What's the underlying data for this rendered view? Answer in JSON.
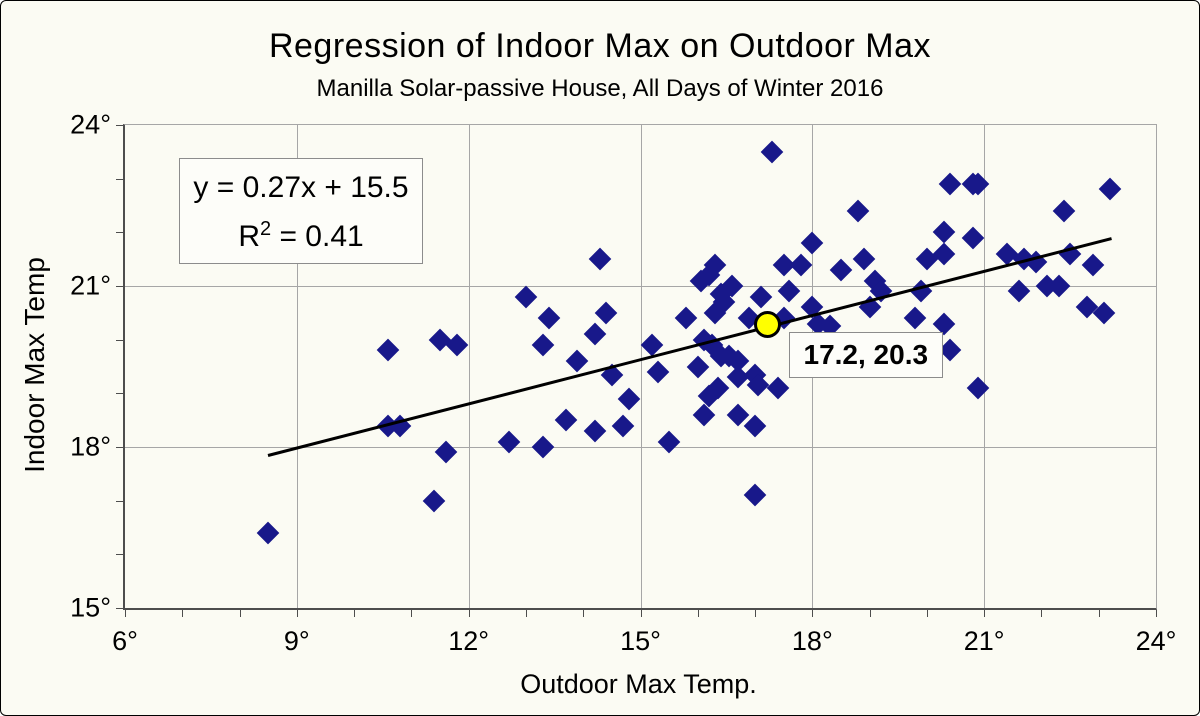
{
  "title": "Regression of Indoor Max on Outdoor Max",
  "subtitle": "Manilla Solar-passive House, All Days of Winter 2016",
  "equation": {
    "line1": "y = 0.27x + 15.5",
    "r2_base": "R",
    "r2_sup": "2",
    "r2_rest": " = 0.41"
  },
  "colors": {
    "point": "#18188a",
    "highlight_fill": "#ffff00",
    "trendline": "#000000",
    "grid": "#a6a6a6",
    "axis": "#4d4d4d",
    "canvas_bg": "#fbfbf3",
    "box_bg": "#fdfdf9",
    "box_border": "#8c8c8c"
  },
  "chart_data": {
    "type": "scatter",
    "title": "Regression of Indoor Max on Outdoor Max",
    "subtitle": "Manilla Solar-passive House, All Days of Winter 2016",
    "xlabel": "Outdoor Max Temp.",
    "ylabel": "Indoor Max Temp",
    "xlim": [
      6,
      24
    ],
    "ylim": [
      15,
      24
    ],
    "grid": "on",
    "x_ticks": [
      {
        "v": 6,
        "label": "6°"
      },
      {
        "v": 9,
        "label": "9°"
      },
      {
        "v": 12,
        "label": "12°"
      },
      {
        "v": 15,
        "label": "15°"
      },
      {
        "v": 18,
        "label": "18°"
      },
      {
        "v": 21,
        "label": "21°"
      },
      {
        "v": 24,
        "label": "24°"
      }
    ],
    "y_ticks": [
      {
        "v": 15,
        "label": "15°"
      },
      {
        "v": 18,
        "label": "18°"
      },
      {
        "v": 21,
        "label": "21°"
      },
      {
        "v": 24,
        "label": "24°"
      }
    ],
    "grid_x": [
      9,
      12,
      15,
      18,
      21
    ],
    "grid_y": [
      18,
      21
    ],
    "minor_tick_step": 1,
    "points": [
      [
        8.5,
        16.4
      ],
      [
        10.6,
        19.8
      ],
      [
        10.6,
        18.4
      ],
      [
        10.8,
        18.4
      ],
      [
        11.4,
        17.0
      ],
      [
        11.5,
        20.0
      ],
      [
        11.6,
        17.9
      ],
      [
        11.8,
        19.9
      ],
      [
        12.7,
        18.1
      ],
      [
        13.0,
        20.8
      ],
      [
        13.3,
        18.0
      ],
      [
        13.3,
        19.9
      ],
      [
        13.4,
        20.4
      ],
      [
        13.7,
        18.5
      ],
      [
        13.9,
        19.6
      ],
      [
        14.2,
        20.1
      ],
      [
        14.2,
        18.3
      ],
      [
        14.3,
        21.5
      ],
      [
        14.4,
        20.5
      ],
      [
        14.5,
        19.35
      ],
      [
        14.7,
        18.4
      ],
      [
        14.8,
        18.9
      ],
      [
        15.2,
        19.9
      ],
      [
        15.3,
        19.4
      ],
      [
        15.5,
        18.1
      ],
      [
        15.8,
        20.4
      ],
      [
        16.0,
        19.5
      ],
      [
        16.05,
        21.1
      ],
      [
        16.1,
        20.0
      ],
      [
        16.1,
        18.6
      ],
      [
        16.2,
        21.2
      ],
      [
        16.25,
        19.9
      ],
      [
        16.2,
        18.95
      ],
      [
        16.35,
        19.1
      ],
      [
        16.3,
        21.4
      ],
      [
        16.3,
        20.5
      ],
      [
        16.45,
        20.7
      ],
      [
        16.4,
        19.7
      ],
      [
        16.55,
        19.7
      ],
      [
        16.6,
        21.0
      ],
      [
        16.4,
        20.85
      ],
      [
        16.7,
        19.6
      ],
      [
        16.7,
        19.3
      ],
      [
        16.7,
        18.6
      ],
      [
        16.9,
        20.4
      ],
      [
        17.0,
        18.4
      ],
      [
        17.0,
        17.1
      ],
      [
        17.0,
        19.35
      ],
      [
        17.05,
        19.15
      ],
      [
        17.1,
        20.8
      ],
      [
        17.3,
        23.5
      ],
      [
        17.4,
        19.1
      ],
      [
        17.5,
        21.4
      ],
      [
        17.5,
        20.4
      ],
      [
        17.6,
        20.9
      ],
      [
        17.8,
        21.4
      ],
      [
        18.0,
        21.8
      ],
      [
        18.0,
        20.6
      ],
      [
        18.1,
        20.3
      ],
      [
        18.3,
        20.25
      ],
      [
        18.5,
        21.3
      ],
      [
        18.8,
        22.4
      ],
      [
        18.9,
        21.5
      ],
      [
        19.0,
        20.6
      ],
      [
        19.1,
        21.1
      ],
      [
        19.2,
        20.9
      ],
      [
        19.8,
        20.4
      ],
      [
        19.9,
        20.9
      ],
      [
        20.0,
        21.5
      ],
      [
        20.3,
        21.6
      ],
      [
        20.3,
        22.0
      ],
      [
        20.3,
        20.3
      ],
      [
        20.4,
        22.9
      ],
      [
        20.4,
        19.8
      ],
      [
        20.8,
        22.9
      ],
      [
        20.9,
        22.9
      ],
      [
        20.8,
        21.9
      ],
      [
        20.9,
        19.1
      ],
      [
        21.4,
        21.6
      ],
      [
        21.6,
        20.9
      ],
      [
        21.7,
        21.5
      ],
      [
        21.9,
        21.45
      ],
      [
        22.1,
        21.0
      ],
      [
        22.3,
        21.0
      ],
      [
        22.4,
        22.4
      ],
      [
        22.5,
        21.6
      ],
      [
        22.8,
        20.6
      ],
      [
        22.9,
        21.4
      ],
      [
        23.1,
        20.5
      ],
      [
        23.2,
        22.8
      ]
    ],
    "trendline": {
      "x1": 8.49,
      "y1": 17.84,
      "x2": 23.21,
      "y2": 21.88,
      "equation": "y = 0.27x + 15.5",
      "r_squared": 0.41
    },
    "highlight": {
      "x": 17.2,
      "y": 20.3,
      "label": "17.2, 20.3"
    },
    "legend": "none"
  }
}
